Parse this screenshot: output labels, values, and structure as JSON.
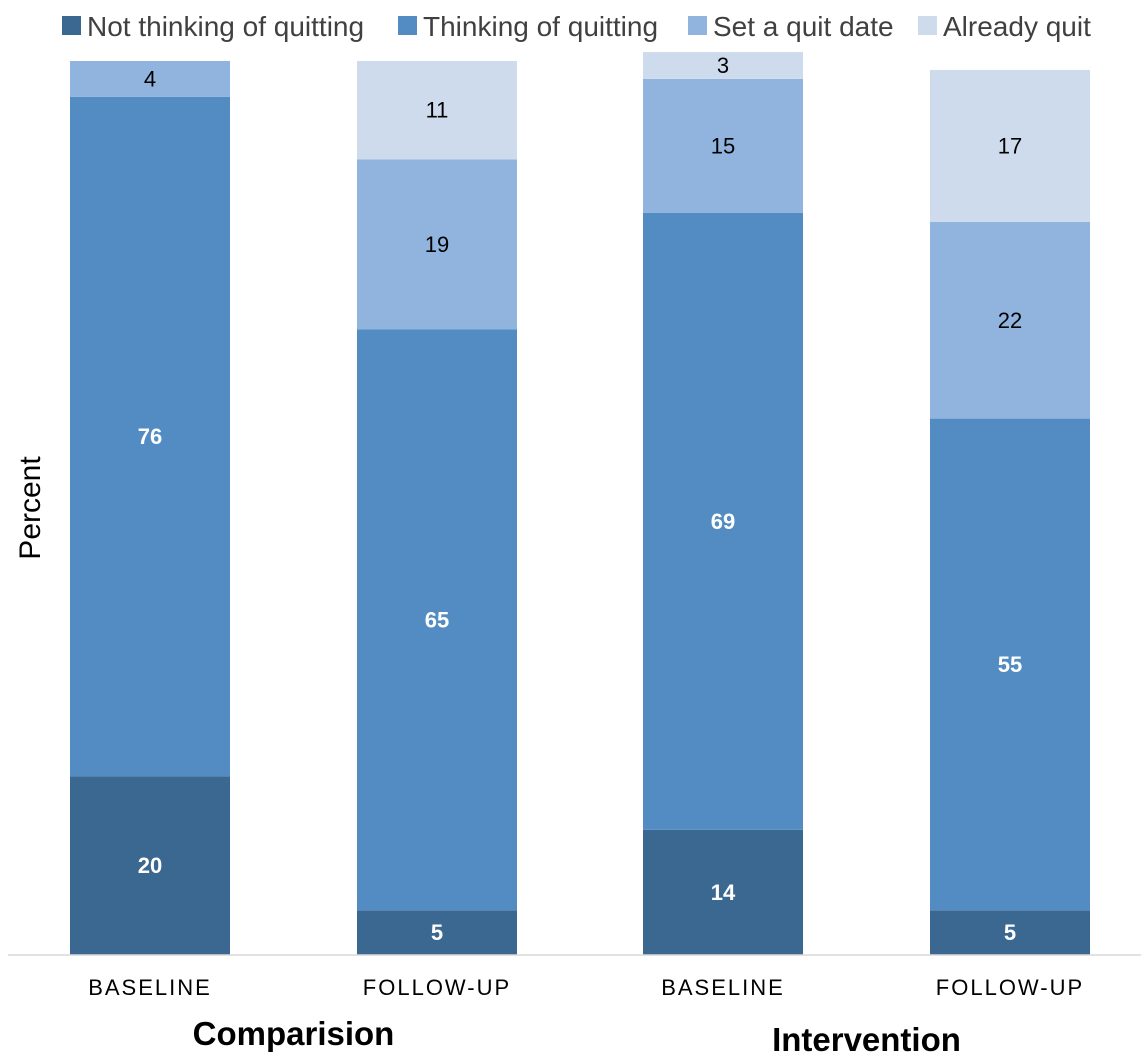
{
  "chart_data": {
    "type": "bar",
    "stacked": true,
    "normalized_percent": true,
    "ylabel": "Percent",
    "ylim": [
      0,
      100
    ],
    "grid": false,
    "legend_position": "top",
    "categories": [
      "BASELINE",
      "FOLLOW-UP",
      "BASELINE",
      "FOLLOW-UP"
    ],
    "groups": [
      {
        "label": "Comparision",
        "categories": [
          0,
          1
        ]
      },
      {
        "label": "Intervention",
        "categories": [
          2,
          3
        ]
      }
    ],
    "series": [
      {
        "name": "Not thinking of quitting",
        "color": "#3b6891",
        "label_color": "#ffffff",
        "label_bold": true,
        "values": [
          20,
          5,
          14,
          5
        ]
      },
      {
        "name": "Thinking of quitting",
        "color": "#538cc2",
        "label_color": "#ffffff",
        "label_bold": true,
        "values": [
          76,
          65,
          69,
          55
        ]
      },
      {
        "name": "Set a quit date",
        "color": "#90b4de",
        "label_color": "#000000",
        "label_bold": false,
        "values": [
          4,
          19,
          15,
          22
        ]
      },
      {
        "name": "Already quit",
        "color": "#cedbed",
        "label_color": "#000000",
        "label_bold": false,
        "values": [
          0,
          11,
          3,
          17
        ]
      }
    ]
  }
}
